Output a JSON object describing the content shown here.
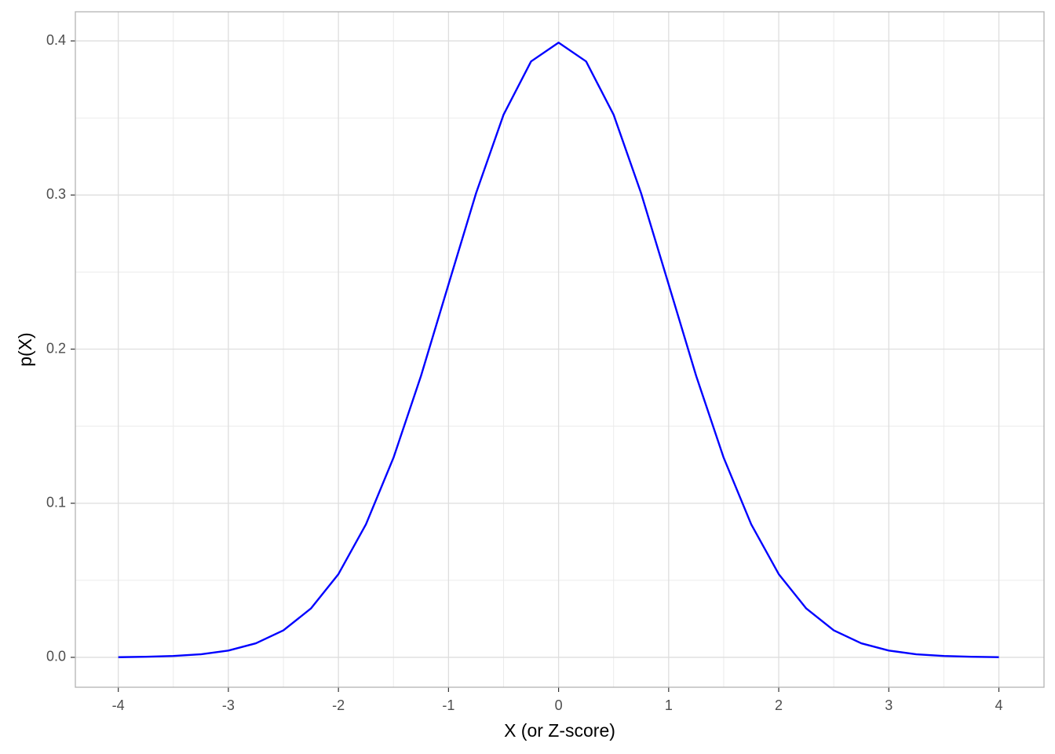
{
  "chart_data": {
    "type": "line",
    "x_label": "X (or Z-score)",
    "y_label": "p(X)",
    "x": [
      -4,
      -3.75,
      -3.5,
      -3.25,
      -3,
      -2.75,
      -2.5,
      -2.25,
      -2,
      -1.75,
      -1.5,
      -1.25,
      -1,
      -0.75,
      -0.5,
      -0.25,
      0,
      0.25,
      0.5,
      0.75,
      1,
      1.25,
      1.5,
      1.75,
      2,
      2.25,
      2.5,
      2.75,
      3,
      3.25,
      3.5,
      3.75,
      4
    ],
    "series": [
      {
        "color": "#0000ff",
        "values": [
          0.0001,
          0.0004,
          0.0009,
          0.002,
          0.0044,
          0.0091,
          0.0175,
          0.0317,
          0.054,
          0.0863,
          0.1295,
          0.1826,
          0.242,
          0.3011,
          0.3521,
          0.3867,
          0.3989,
          0.3867,
          0.3521,
          0.3011,
          0.242,
          0.1826,
          0.1295,
          0.0863,
          0.054,
          0.0317,
          0.0175,
          0.0091,
          0.0044,
          0.002,
          0.0009,
          0.0004,
          0.0001
        ]
      }
    ],
    "xlim": [
      -4.39,
      4.41
    ],
    "ylim": [
      -0.0194,
      0.4189
    ],
    "xticks": [
      -4,
      -3,
      -2,
      -1,
      0,
      1,
      2,
      3,
      4
    ],
    "yticks": [
      {
        "value": 0,
        "label": "0.0"
      },
      0.1,
      0.2,
      0.3,
      0.4
    ],
    "grid": true
  }
}
